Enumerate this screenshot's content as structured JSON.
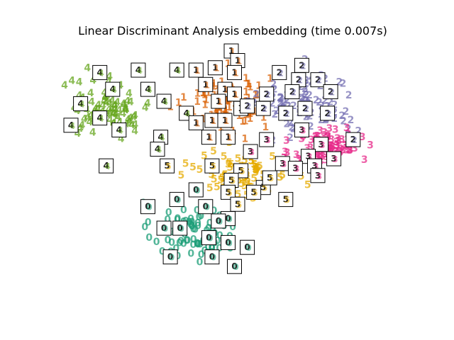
{
  "chart_data": {
    "type": "scatter",
    "title": "Linear Discriminant Analysis embedding (time 0.007s)",
    "axes_visible": false,
    "xlim": [
      0,
      1
    ],
    "ylim": [
      0,
      1
    ],
    "marker": "digit label",
    "series": [
      {
        "label": "0",
        "color": "#1b9e77",
        "center": [
          0.38,
          0.24
        ],
        "spread": [
          0.085,
          0.085
        ],
        "count": 90
      },
      {
        "label": "1",
        "color": "#d95f02",
        "center": [
          0.49,
          0.79
        ],
        "spread": [
          0.085,
          0.08
        ],
        "count": 90
      },
      {
        "label": "2",
        "color": "#7570b3",
        "center": [
          0.74,
          0.78
        ],
        "spread": [
          0.1,
          0.09
        ],
        "count": 90
      },
      {
        "label": "3",
        "color": "#e7298a",
        "center": [
          0.8,
          0.59
        ],
        "spread": [
          0.07,
          0.06
        ],
        "count": 90
      },
      {
        "label": "4",
        "color": "#66a61e",
        "center": [
          0.12,
          0.76
        ],
        "spread": [
          0.085,
          0.08
        ],
        "count": 90
      },
      {
        "label": "5",
        "color": "#e6ab02",
        "center": [
          0.54,
          0.48
        ],
        "spread": [
          0.09,
          0.06
        ],
        "count": 90
      }
    ],
    "thumbnails": [
      {
        "label": "4",
        "x": 0.09,
        "y": 0.91
      },
      {
        "label": "4",
        "x": 0.21,
        "y": 0.92
      },
      {
        "label": "4",
        "x": 0.33,
        "y": 0.92
      },
      {
        "label": "4",
        "x": 0.03,
        "y": 0.78
      },
      {
        "label": "4",
        "x": 0.13,
        "y": 0.84
      },
      {
        "label": "4",
        "x": 0.24,
        "y": 0.84
      },
      {
        "label": "4",
        "x": 0.29,
        "y": 0.79
      },
      {
        "label": "4",
        "x": 0.36,
        "y": 0.74
      },
      {
        "label": "4",
        "x": 0.09,
        "y": 0.72
      },
      {
        "label": "4",
        "x": 0.15,
        "y": 0.67
      },
      {
        "label": "4",
        "x": 0.28,
        "y": 0.64
      },
      {
        "label": "4",
        "x": 0.27,
        "y": 0.59
      },
      {
        "label": "4",
        "x": 0.0,
        "y": 0.69
      },
      {
        "label": "4",
        "x": 0.11,
        "y": 0.52
      },
      {
        "label": "1",
        "x": 0.5,
        "y": 1.0
      },
      {
        "label": "1",
        "x": 0.52,
        "y": 0.96
      },
      {
        "label": "1",
        "x": 0.39,
        "y": 0.92
      },
      {
        "label": "1",
        "x": 0.45,
        "y": 0.93
      },
      {
        "label": "1",
        "x": 0.51,
        "y": 0.91
      },
      {
        "label": "1",
        "x": 0.42,
        "y": 0.86
      },
      {
        "label": "1",
        "x": 0.48,
        "y": 0.84
      },
      {
        "label": "1",
        "x": 0.51,
        "y": 0.82
      },
      {
        "label": "1",
        "x": 0.46,
        "y": 0.79
      },
      {
        "label": "1",
        "x": 0.53,
        "y": 0.76
      },
      {
        "label": "1",
        "x": 0.39,
        "y": 0.7
      },
      {
        "label": "1",
        "x": 0.44,
        "y": 0.71
      },
      {
        "label": "1",
        "x": 0.48,
        "y": 0.71
      },
      {
        "label": "1",
        "x": 0.43,
        "y": 0.64
      },
      {
        "label": "1",
        "x": 0.49,
        "y": 0.64
      },
      {
        "label": "2",
        "x": 0.72,
        "y": 0.94
      },
      {
        "label": "2",
        "x": 0.65,
        "y": 0.91
      },
      {
        "label": "2",
        "x": 0.71,
        "y": 0.88
      },
      {
        "label": "2",
        "x": 0.77,
        "y": 0.88
      },
      {
        "label": "2",
        "x": 0.81,
        "y": 0.83
      },
      {
        "label": "2",
        "x": 0.61,
        "y": 0.82
      },
      {
        "label": "2",
        "x": 0.69,
        "y": 0.83
      },
      {
        "label": "2",
        "x": 0.55,
        "y": 0.77
      },
      {
        "label": "2",
        "x": 0.6,
        "y": 0.76
      },
      {
        "label": "2",
        "x": 0.67,
        "y": 0.74
      },
      {
        "label": "2",
        "x": 0.73,
        "y": 0.76
      },
      {
        "label": "2",
        "x": 0.8,
        "y": 0.74
      },
      {
        "label": "2",
        "x": 0.88,
        "y": 0.63
      },
      {
        "label": "3",
        "x": 0.72,
        "y": 0.67
      },
      {
        "label": "3",
        "x": 0.61,
        "y": 0.63
      },
      {
        "label": "3",
        "x": 0.78,
        "y": 0.61
      },
      {
        "label": "3",
        "x": 0.74,
        "y": 0.56
      },
      {
        "label": "3",
        "x": 0.66,
        "y": 0.53
      },
      {
        "label": "3",
        "x": 0.7,
        "y": 0.51
      },
      {
        "label": "3",
        "x": 0.76,
        "y": 0.52
      },
      {
        "label": "3",
        "x": 0.82,
        "y": 0.55
      },
      {
        "label": "3",
        "x": 0.77,
        "y": 0.48
      },
      {
        "label": "3",
        "x": 0.56,
        "y": 0.58
      },
      {
        "label": "5",
        "x": 0.3,
        "y": 0.52
      },
      {
        "label": "5",
        "x": 0.44,
        "y": 0.52
      },
      {
        "label": "5",
        "x": 0.53,
        "y": 0.5
      },
      {
        "label": "5",
        "x": 0.5,
        "y": 0.46
      },
      {
        "label": "5",
        "x": 0.49,
        "y": 0.41
      },
      {
        "label": "5",
        "x": 0.6,
        "y": 0.43
      },
      {
        "label": "5",
        "x": 0.62,
        "y": 0.47
      },
      {
        "label": "5",
        "x": 0.57,
        "y": 0.41
      },
      {
        "label": "5",
        "x": 0.67,
        "y": 0.38
      },
      {
        "label": "5",
        "x": 0.52,
        "y": 0.36
      },
      {
        "label": "0",
        "x": 0.39,
        "y": 0.42
      },
      {
        "label": "0",
        "x": 0.33,
        "y": 0.38
      },
      {
        "label": "0",
        "x": 0.24,
        "y": 0.35
      },
      {
        "label": "0",
        "x": 0.42,
        "y": 0.35
      },
      {
        "label": "0",
        "x": 0.49,
        "y": 0.3
      },
      {
        "label": "0",
        "x": 0.46,
        "y": 0.29
      },
      {
        "label": "0",
        "x": 0.29,
        "y": 0.26
      },
      {
        "label": "0",
        "x": 0.34,
        "y": 0.26
      },
      {
        "label": "0",
        "x": 0.43,
        "y": 0.22
      },
      {
        "label": "0",
        "x": 0.49,
        "y": 0.2
      },
      {
        "label": "0",
        "x": 0.55,
        "y": 0.18
      },
      {
        "label": "0",
        "x": 0.31,
        "y": 0.14
      },
      {
        "label": "0",
        "x": 0.44,
        "y": 0.14
      },
      {
        "label": "0",
        "x": 0.51,
        "y": 0.1
      }
    ]
  }
}
